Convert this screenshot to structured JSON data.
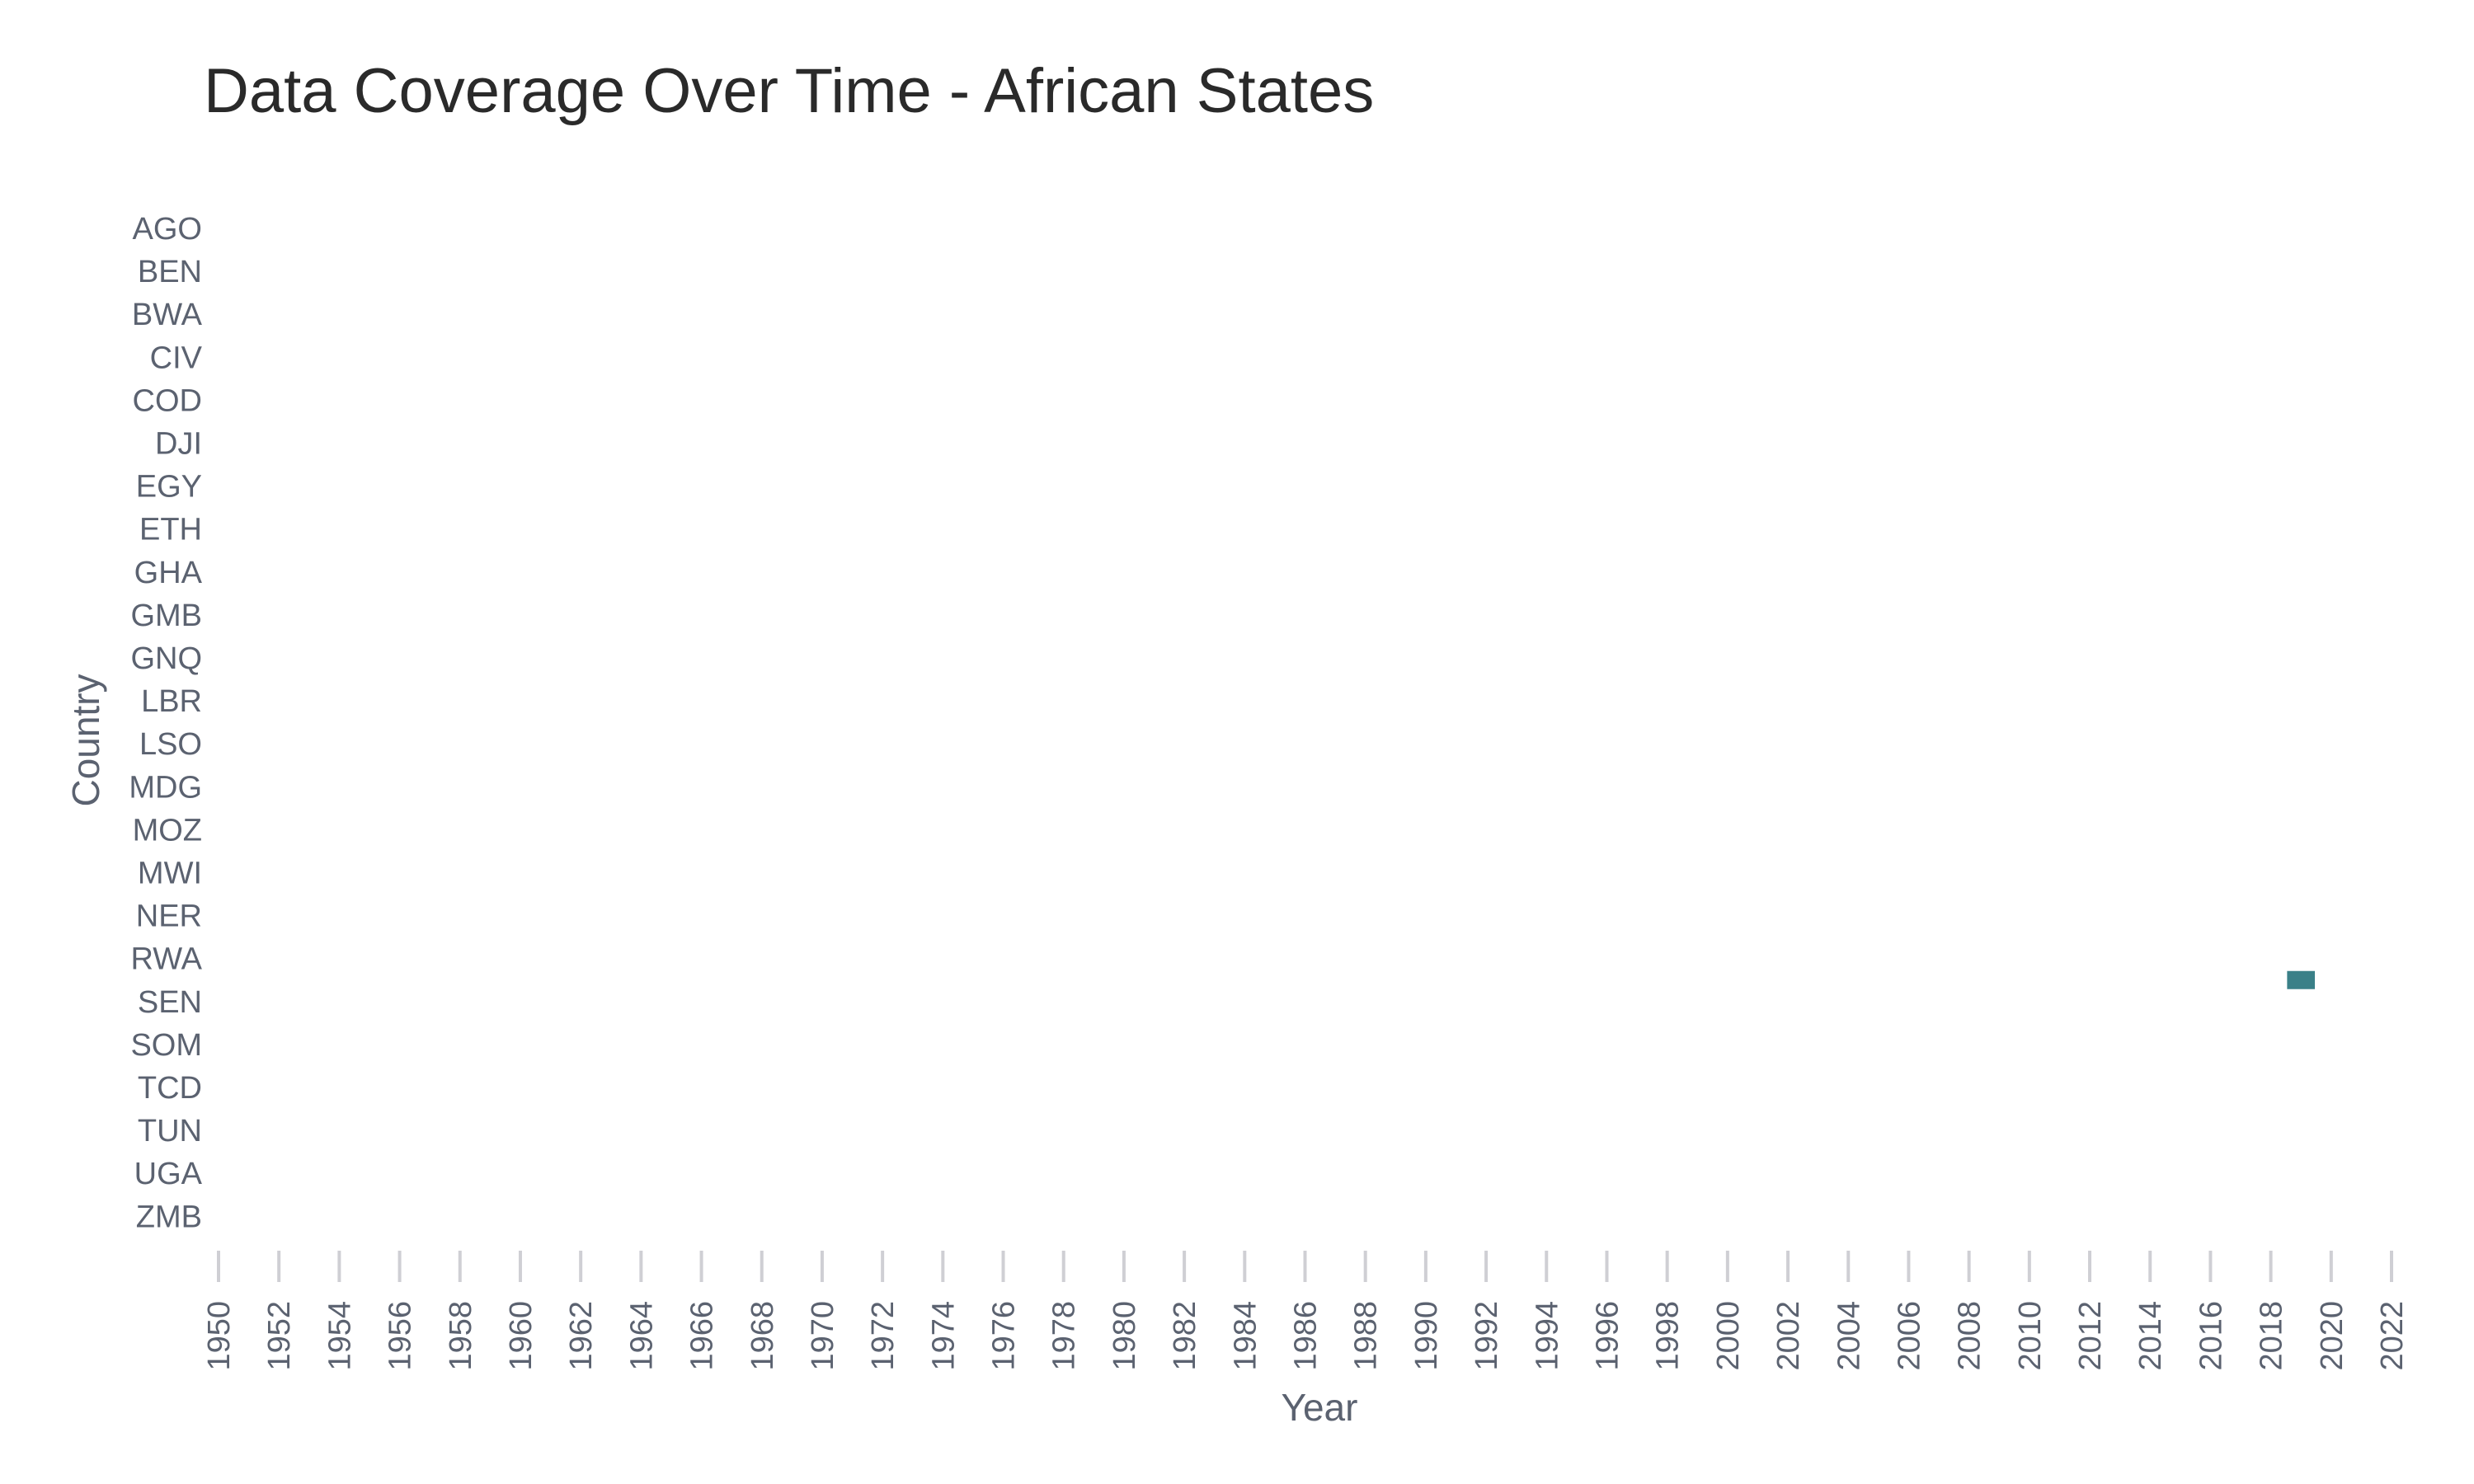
{
  "chart_data": {
    "type": "heatmap",
    "title": "Data Coverage Over Time - African States",
    "xlabel": "Year",
    "ylabel": "Country",
    "xlim": [
      1950,
      2022
    ],
    "x_ticks": [
      1950,
      1952,
      1954,
      1956,
      1958,
      1960,
      1962,
      1964,
      1966,
      1968,
      1970,
      1972,
      1974,
      1976,
      1978,
      1980,
      1982,
      1984,
      1986,
      1988,
      1990,
      1992,
      1994,
      1996,
      1998,
      2000,
      2002,
      2004,
      2006,
      2008,
      2010,
      2012,
      2014,
      2016,
      2018,
      2020,
      2022
    ],
    "x_tick_labels": [
      "1950",
      "1952",
      "1954",
      "1956",
      "1958",
      "1960",
      "1962",
      "1964",
      "1966",
      "1968",
      "1970",
      "1972",
      "1974",
      "1976",
      "1978",
      "1980",
      "1982",
      "1984",
      "1986",
      "1988",
      "1990",
      "1992",
      "1994",
      "1996",
      "1998",
      "2000",
      "2002",
      "2004",
      "2006",
      "2008",
      "2010",
      "2012",
      "2014",
      "2016",
      "2018",
      "2020",
      "2022"
    ],
    "categories": [
      "AGO",
      "BEN",
      "BWA",
      "CIV",
      "COD",
      "DJI",
      "EGY",
      "ETH",
      "GHA",
      "GMB",
      "GNQ",
      "LBR",
      "LSO",
      "MDG",
      "MOZ",
      "MWI",
      "NER",
      "RWA",
      "SEN",
      "SOM",
      "TCD",
      "TUN",
      "UGA",
      "ZMB"
    ],
    "cells": [
      {
        "country": "RWA",
        "year": 2019,
        "covered": true
      }
    ],
    "cell_color": "#3a8088",
    "grid": false,
    "legend": "none"
  }
}
